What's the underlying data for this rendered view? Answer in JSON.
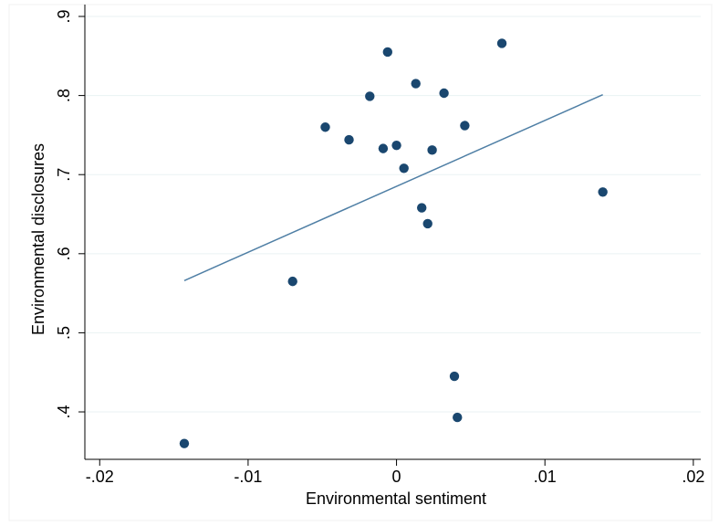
{
  "chart_data": {
    "type": "scatter",
    "title": "",
    "xlabel": "Environmental sentiment",
    "ylabel": "Environmental disclosures",
    "xlim": [
      -0.021,
      0.0205
    ],
    "ylim": [
      0.34,
      0.915
    ],
    "x_ticks": [
      {
        "value": -0.02,
        "label": "-.02"
      },
      {
        "value": -0.01,
        "label": "-.01"
      },
      {
        "value": 0,
        "label": "0"
      },
      {
        "value": 0.01,
        "label": ".01"
      },
      {
        "value": 0.02,
        "label": ".02"
      }
    ],
    "y_ticks": [
      {
        "value": 0.4,
        "label": ".4"
      },
      {
        "value": 0.5,
        "label": ".5"
      },
      {
        "value": 0.6,
        "label": ".6"
      },
      {
        "value": 0.7,
        "label": ".7"
      },
      {
        "value": 0.8,
        "label": ".8"
      },
      {
        "value": 0.9,
        "label": ".9"
      }
    ],
    "grid": "horizontal",
    "legend": "none",
    "colors": {
      "points": "#1a476f",
      "fit_line": "#4f7fa5",
      "grid": "#eaf2f3",
      "axis": "#000000"
    },
    "series": [
      {
        "type": "scatter",
        "points": [
          {
            "x": -0.0143,
            "y": 0.36
          },
          {
            "x": -0.007,
            "y": 0.565
          },
          {
            "x": -0.0048,
            "y": 0.76
          },
          {
            "x": -0.0032,
            "y": 0.744
          },
          {
            "x": -0.0018,
            "y": 0.799
          },
          {
            "x": -0.0009,
            "y": 0.733
          },
          {
            "x": -0.0006,
            "y": 0.855
          },
          {
            "x": 0.0,
            "y": 0.737
          },
          {
            "x": 0.0005,
            "y": 0.708
          },
          {
            "x": 0.0013,
            "y": 0.815
          },
          {
            "x": 0.0017,
            "y": 0.658
          },
          {
            "x": 0.0021,
            "y": 0.638
          },
          {
            "x": 0.0024,
            "y": 0.731
          },
          {
            "x": 0.0032,
            "y": 0.803
          },
          {
            "x": 0.0039,
            "y": 0.445
          },
          {
            "x": 0.0041,
            "y": 0.393
          },
          {
            "x": 0.0046,
            "y": 0.762
          },
          {
            "x": 0.0071,
            "y": 0.866
          },
          {
            "x": 0.0139,
            "y": 0.678
          }
        ]
      },
      {
        "type": "line",
        "points": [
          {
            "x": -0.0143,
            "y": 0.566
          },
          {
            "x": 0.0139,
            "y": 0.801
          }
        ]
      }
    ]
  }
}
